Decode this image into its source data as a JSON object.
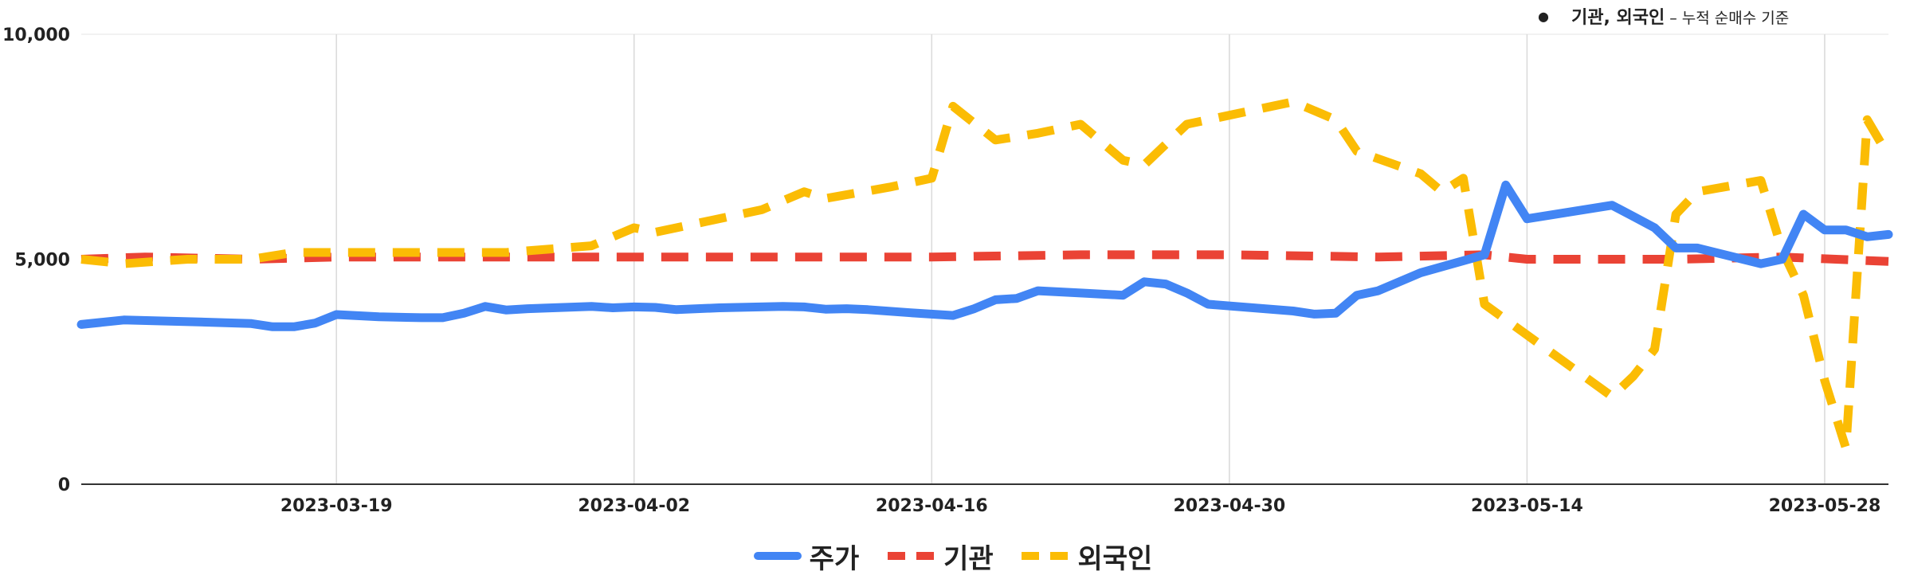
{
  "note": {
    "strong": "기관, 외국인",
    "rest": " – 누적 순매수 기준"
  },
  "legend": [
    {
      "label": "주가",
      "style": "solid",
      "color": "#4285F4"
    },
    {
      "label": "기관",
      "style": "dash-red",
      "color": "#EA4335"
    },
    {
      "label": "외국인",
      "style": "dash-yellow",
      "color": "#FBBC04"
    }
  ],
  "chart_data": {
    "type": "line",
    "x_type": "date",
    "xlim": [
      "2023-03-07",
      "2023-05-31"
    ],
    "ylim": [
      0,
      10000
    ],
    "y_ticks": [
      0,
      5000,
      10000
    ],
    "y_tick_labels": [
      "0",
      "5,000",
      "10,000"
    ],
    "x_ticks": [
      "2023-03-19",
      "2023-04-02",
      "2023-04-16",
      "2023-04-30",
      "2023-05-14",
      "2023-05-28"
    ],
    "grid": "vertical",
    "legend_position": "bottom",
    "series": [
      {
        "name": "주가",
        "color": "#4285F4",
        "dash": "solid",
        "points": [
          [
            "2023-03-07",
            3550
          ],
          [
            "2023-03-09",
            3650
          ],
          [
            "2023-03-13",
            3600
          ],
          [
            "2023-03-15",
            3570
          ],
          [
            "2023-03-16",
            3500
          ],
          [
            "2023-03-17",
            3500
          ],
          [
            "2023-03-18",
            3580
          ],
          [
            "2023-03-19",
            3770
          ],
          [
            "2023-03-21",
            3720
          ],
          [
            "2023-03-23",
            3700
          ],
          [
            "2023-03-24",
            3700
          ],
          [
            "2023-03-25",
            3800
          ],
          [
            "2023-03-26",
            3950
          ],
          [
            "2023-03-27",
            3870
          ],
          [
            "2023-03-28",
            3900
          ],
          [
            "2023-03-31",
            3950
          ],
          [
            "2023-04-01",
            3920
          ],
          [
            "2023-04-02",
            3940
          ],
          [
            "2023-04-03",
            3930
          ],
          [
            "2023-04-04",
            3880
          ],
          [
            "2023-04-06",
            3920
          ],
          [
            "2023-04-09",
            3950
          ],
          [
            "2023-04-10",
            3940
          ],
          [
            "2023-04-11",
            3890
          ],
          [
            "2023-04-12",
            3900
          ],
          [
            "2023-04-13",
            3880
          ],
          [
            "2023-04-15",
            3810
          ],
          [
            "2023-04-17",
            3750
          ],
          [
            "2023-04-18",
            3900
          ],
          [
            "2023-04-19",
            4100
          ],
          [
            "2023-04-20",
            4130
          ],
          [
            "2023-04-21",
            4300
          ],
          [
            "2023-04-23",
            4250
          ],
          [
            "2023-04-25",
            4200
          ],
          [
            "2023-04-26",
            4500
          ],
          [
            "2023-04-27",
            4450
          ],
          [
            "2023-04-28",
            4250
          ],
          [
            "2023-04-29",
            4000
          ],
          [
            "2023-05-03",
            3850
          ],
          [
            "2023-05-04",
            3780
          ],
          [
            "2023-05-05",
            3800
          ],
          [
            "2023-05-06",
            4200
          ],
          [
            "2023-05-07",
            4300
          ],
          [
            "2023-05-09",
            4700
          ],
          [
            "2023-05-12",
            5100
          ],
          [
            "2023-05-13",
            6650
          ],
          [
            "2023-05-14",
            5900
          ],
          [
            "2023-05-18",
            6200
          ],
          [
            "2023-05-19",
            5950
          ],
          [
            "2023-05-20",
            5700
          ],
          [
            "2023-05-21",
            5250
          ],
          [
            "2023-05-22",
            5250
          ],
          [
            "2023-05-25",
            4900
          ],
          [
            "2023-05-26",
            5000
          ],
          [
            "2023-05-27",
            6000
          ],
          [
            "2023-05-28",
            5650
          ],
          [
            "2023-05-29",
            5650
          ],
          [
            "2023-05-30",
            5500
          ],
          [
            "2023-05-31",
            5550
          ]
        ]
      },
      {
        "name": "기관",
        "color": "#EA4335",
        "dash": "dashed",
        "points": [
          [
            "2023-03-07",
            5000
          ],
          [
            "2023-03-10",
            5050
          ],
          [
            "2023-03-15",
            5000
          ],
          [
            "2023-03-19",
            5050
          ],
          [
            "2023-03-26",
            5050
          ],
          [
            "2023-04-02",
            5050
          ],
          [
            "2023-04-09",
            5050
          ],
          [
            "2023-04-16",
            5050
          ],
          [
            "2023-04-23",
            5100
          ],
          [
            "2023-04-30",
            5100
          ],
          [
            "2023-05-07",
            5050
          ],
          [
            "2023-05-12",
            5100
          ],
          [
            "2023-05-14",
            5000
          ],
          [
            "2023-05-21",
            5000
          ],
          [
            "2023-05-26",
            5050
          ],
          [
            "2023-05-31",
            4950
          ]
        ]
      },
      {
        "name": "외국인",
        "color": "#FBBC04",
        "dash": "dashed",
        "points": [
          [
            "2023-03-07",
            5000
          ],
          [
            "2023-03-09",
            4900
          ],
          [
            "2023-03-12",
            5000
          ],
          [
            "2023-03-15",
            5000
          ],
          [
            "2023-03-17",
            5150
          ],
          [
            "2023-03-19",
            5150
          ],
          [
            "2023-03-24",
            5150
          ],
          [
            "2023-03-27",
            5150
          ],
          [
            "2023-03-31",
            5300
          ],
          [
            "2023-04-02",
            5700
          ],
          [
            "2023-04-03",
            5600
          ],
          [
            "2023-04-05",
            5800
          ],
          [
            "2023-04-08",
            6100
          ],
          [
            "2023-04-10",
            6500
          ],
          [
            "2023-04-11",
            6350
          ],
          [
            "2023-04-14",
            6600
          ],
          [
            "2023-04-16",
            6800
          ],
          [
            "2023-04-17",
            8400
          ],
          [
            "2023-04-19",
            7650
          ],
          [
            "2023-04-21",
            7800
          ],
          [
            "2023-04-23",
            8000
          ],
          [
            "2023-04-24",
            7600
          ],
          [
            "2023-04-25",
            7200
          ],
          [
            "2023-04-26",
            7100
          ],
          [
            "2023-04-28",
            8000
          ],
          [
            "2023-05-01",
            8300
          ],
          [
            "2023-05-03",
            8500
          ],
          [
            "2023-05-05",
            8100
          ],
          [
            "2023-05-06",
            7400
          ],
          [
            "2023-05-09",
            6900
          ],
          [
            "2023-05-10",
            6500
          ],
          [
            "2023-05-11",
            6800
          ],
          [
            "2023-05-12",
            4000
          ],
          [
            "2023-05-18",
            1950
          ],
          [
            "2023-05-19",
            2400
          ],
          [
            "2023-05-20",
            3000
          ],
          [
            "2023-05-21",
            6000
          ],
          [
            "2023-05-22",
            6500
          ],
          [
            "2023-05-25",
            6750
          ],
          [
            "2023-05-26",
            5200
          ],
          [
            "2023-05-27",
            4200
          ],
          [
            "2023-05-28",
            2300
          ],
          [
            "2023-05-29",
            800
          ],
          [
            "2023-05-30",
            8100
          ],
          [
            "2023-05-31",
            7300
          ]
        ]
      }
    ]
  }
}
